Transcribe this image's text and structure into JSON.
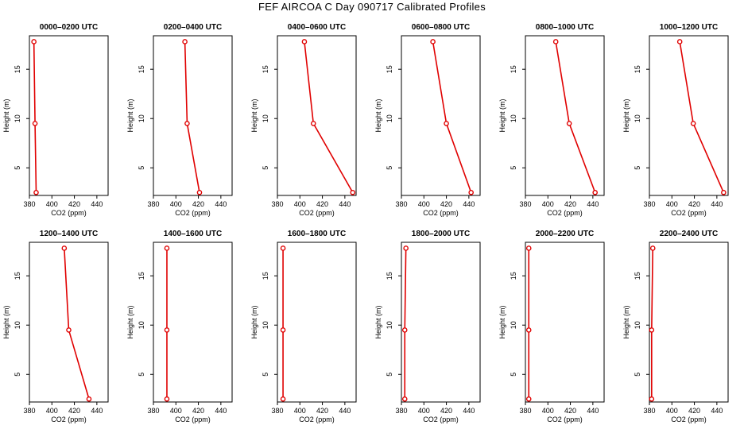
{
  "title": "FEF AIRCOA C  Day 090717  Calibrated Profiles",
  "chart_data": [
    {
      "type": "line",
      "title": "0000–0200 UTC",
      "xlabel": "CO2 (ppm)",
      "ylabel": "Height (m)",
      "xlim": [
        380,
        450
      ],
      "ylim": [
        2.2,
        18.4
      ],
      "xticks": [
        380,
        400,
        420,
        440
      ],
      "yticks": [
        5,
        10,
        15
      ],
      "x": [
        384,
        385,
        386
      ],
      "y": [
        17.8,
        9.5,
        2.5
      ]
    },
    {
      "type": "line",
      "title": "0200–0400 UTC",
      "xlabel": "CO2 (ppm)",
      "ylabel": "Height (m)",
      "xlim": [
        380,
        450
      ],
      "ylim": [
        2.2,
        18.4
      ],
      "xticks": [
        380,
        400,
        420,
        440
      ],
      "yticks": [
        5,
        10,
        15
      ],
      "x": [
        408,
        410,
        421
      ],
      "y": [
        17.8,
        9.5,
        2.5
      ]
    },
    {
      "type": "line",
      "title": "0400–0600 UTC",
      "xlabel": "CO2 (ppm)",
      "ylabel": "Height (m)",
      "xlim": [
        380,
        450
      ],
      "ylim": [
        2.2,
        18.4
      ],
      "xticks": [
        380,
        400,
        420,
        440
      ],
      "yticks": [
        5,
        10,
        15
      ],
      "x": [
        404,
        412,
        447
      ],
      "y": [
        17.8,
        9.5,
        2.5
      ]
    },
    {
      "type": "line",
      "title": "0600–0800 UTC",
      "xlabel": "CO2 (ppm)",
      "ylabel": "Height (m)",
      "xlim": [
        380,
        450
      ],
      "ylim": [
        2.2,
        18.4
      ],
      "xticks": [
        380,
        400,
        420,
        440
      ],
      "yticks": [
        5,
        10,
        15
      ],
      "x": [
        408,
        420,
        442
      ],
      "y": [
        17.8,
        9.5,
        2.5
      ]
    },
    {
      "type": "line",
      "title": "0800–1000 UTC",
      "xlabel": "CO2 (ppm)",
      "ylabel": "Height (m)",
      "xlim": [
        380,
        450
      ],
      "ylim": [
        2.2,
        18.4
      ],
      "xticks": [
        380,
        400,
        420,
        440
      ],
      "yticks": [
        5,
        10,
        15
      ],
      "x": [
        407,
        419,
        442
      ],
      "y": [
        17.8,
        9.5,
        2.5
      ]
    },
    {
      "type": "line",
      "title": "1000–1200 UTC",
      "xlabel": "CO2 (ppm)",
      "ylabel": "Height (m)",
      "xlim": [
        380,
        450
      ],
      "ylim": [
        2.2,
        18.4
      ],
      "xticks": [
        380,
        400,
        420,
        440
      ],
      "yticks": [
        5,
        10,
        15
      ],
      "x": [
        407,
        419,
        446
      ],
      "y": [
        17.8,
        9.5,
        2.5
      ]
    },
    {
      "type": "line",
      "title": "1200–1400 UTC",
      "xlabel": "CO2 (ppm)",
      "ylabel": "Height (m)",
      "xlim": [
        380,
        450
      ],
      "ylim": [
        2.2,
        18.4
      ],
      "xticks": [
        380,
        400,
        420,
        440
      ],
      "yticks": [
        5,
        10,
        15
      ],
      "x": [
        411,
        415,
        433
      ],
      "y": [
        17.8,
        9.5,
        2.5
      ]
    },
    {
      "type": "line",
      "title": "1400–1600 UTC",
      "xlabel": "CO2 (ppm)",
      "ylabel": "Height (m)",
      "xlim": [
        380,
        450
      ],
      "ylim": [
        2.2,
        18.4
      ],
      "xticks": [
        380,
        400,
        420,
        440
      ],
      "yticks": [
        5,
        10,
        15
      ],
      "x": [
        392,
        392,
        392
      ],
      "y": [
        17.8,
        9.5,
        2.5
      ]
    },
    {
      "type": "line",
      "title": "1600–1800 UTC",
      "xlabel": "CO2 (ppm)",
      "ylabel": "Height (m)",
      "xlim": [
        380,
        450
      ],
      "ylim": [
        2.2,
        18.4
      ],
      "xticks": [
        380,
        400,
        420,
        440
      ],
      "yticks": [
        5,
        10,
        15
      ],
      "x": [
        385,
        385,
        385
      ],
      "y": [
        17.8,
        9.5,
        2.5
      ]
    },
    {
      "type": "line",
      "title": "1800–2000 UTC",
      "xlabel": "CO2 (ppm)",
      "ylabel": "Height (m)",
      "xlim": [
        380,
        450
      ],
      "ylim": [
        2.2,
        18.4
      ],
      "xticks": [
        380,
        400,
        420,
        440
      ],
      "yticks": [
        5,
        10,
        15
      ],
      "x": [
        384,
        383,
        383
      ],
      "y": [
        17.8,
        9.5,
        2.5
      ]
    },
    {
      "type": "line",
      "title": "2000–2200 UTC",
      "xlabel": "CO2 (ppm)",
      "ylabel": "Height (m)",
      "xlim": [
        380,
        450
      ],
      "ylim": [
        2.2,
        18.4
      ],
      "xticks": [
        380,
        400,
        420,
        440
      ],
      "yticks": [
        5,
        10,
        15
      ],
      "x": [
        383,
        383,
        383
      ],
      "y": [
        17.8,
        9.5,
        2.5
      ]
    },
    {
      "type": "line",
      "title": "2200–2400 UTC",
      "xlabel": "CO2 (ppm)",
      "ylabel": "Height (m)",
      "xlim": [
        380,
        450
      ],
      "ylim": [
        2.2,
        18.4
      ],
      "xticks": [
        380,
        400,
        420,
        440
      ],
      "yticks": [
        5,
        10,
        15
      ],
      "x": [
        383,
        382,
        382
      ],
      "y": [
        17.8,
        9.5,
        2.5
      ]
    }
  ],
  "colors": {
    "series": "#e00000",
    "axis": "#000000"
  }
}
